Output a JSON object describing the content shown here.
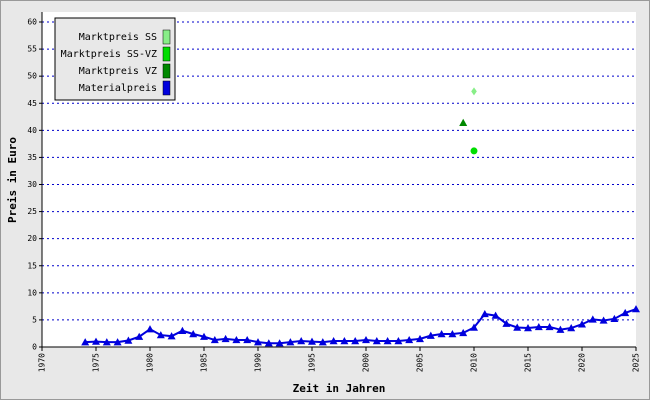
{
  "chart_data": {
    "type": "line",
    "xlabel": "Zeit in Jahren",
    "ylabel": "Preis in Euro",
    "xlim": [
      1970,
      2025
    ],
    "xticks": [
      1970,
      1975,
      1980,
      1985,
      1990,
      1995,
      2000,
      2005,
      2010,
      2015,
      2020,
      2025
    ],
    "ylim": [
      0,
      60
    ],
    "yticks": [
      0,
      5,
      10,
      15,
      20,
      25,
      30,
      35,
      40,
      45,
      50,
      55,
      60
    ],
    "grid": true,
    "legend": "upper left",
    "series": [
      {
        "name": "Marktpreis SS",
        "color": "#88ee88",
        "marker": "diamond",
        "line": false,
        "x": [
          2010
        ],
        "values": [
          47.2
        ]
      },
      {
        "name": "Marktpreis SS-VZ",
        "color": "#00dd00",
        "marker": "circle",
        "line": false,
        "x": [
          2010
        ],
        "values": [
          36.2
        ]
      },
      {
        "name": "Marktpreis VZ",
        "color": "#008800",
        "marker": "triangle",
        "line": false,
        "x": [
          2009
        ],
        "values": [
          41.4
        ]
      },
      {
        "name": "Materialpreis",
        "color": "#0000dd",
        "marker": "triangle",
        "line": true,
        "x": [
          1974,
          1975,
          1976,
          1977,
          1978,
          1979,
          1980,
          1981,
          1982,
          1983,
          1984,
          1985,
          1986,
          1987,
          1988,
          1989,
          1990,
          1991,
          1992,
          1993,
          1994,
          1995,
          1996,
          1997,
          1998,
          1999,
          2000,
          2001,
          2002,
          2003,
          2004,
          2005,
          2006,
          2007,
          2008,
          2009,
          2010,
          2011,
          2012,
          2013,
          2014,
          2015,
          2016,
          2017,
          2018,
          2019,
          2020,
          2021,
          2022,
          2023,
          2024,
          2025
        ],
        "values": [
          0.9,
          1.0,
          0.9,
          0.9,
          1.2,
          1.9,
          3.3,
          2.2,
          2.0,
          3.0,
          2.4,
          1.9,
          1.3,
          1.5,
          1.3,
          1.3,
          0.9,
          0.7,
          0.7,
          0.9,
          1.1,
          1.0,
          0.9,
          1.1,
          1.1,
          1.1,
          1.3,
          1.1,
          1.1,
          1.1,
          1.3,
          1.5,
          2.1,
          2.4,
          2.4,
          2.6,
          3.6,
          6.1,
          5.8,
          4.3,
          3.6,
          3.5,
          3.7,
          3.7,
          3.2,
          3.5,
          4.2,
          5.1,
          4.9,
          5.2,
          6.3,
          7.0
        ]
      }
    ]
  }
}
